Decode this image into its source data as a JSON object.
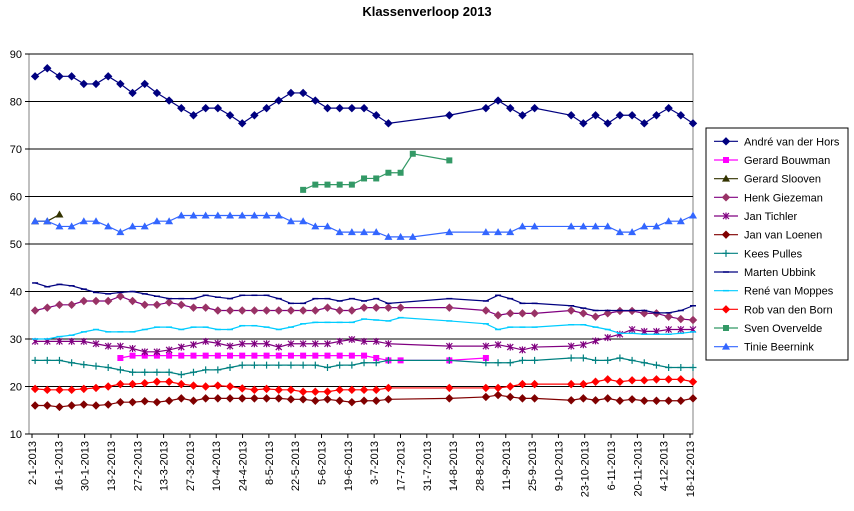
{
  "chart_data": {
    "type": "line",
    "title": "Klassenverloop 2013",
    "xlabel": "",
    "ylabel": "",
    "ylim": [
      10,
      90
    ],
    "yticks": [
      10,
      20,
      30,
      40,
      50,
      60,
      70,
      80,
      90
    ],
    "grid": "horizontal",
    "legend_position": "right",
    "x_tick_labels": [
      "2-1-2013",
      "16-1-2013",
      "30-1-2013",
      "13-2-2013",
      "27-2-2013",
      "13-3-2013",
      "27-3-2013",
      "10-4-2013",
      "24-4-2013",
      "8-5-2013",
      "22-5-2013",
      "5-6-2013",
      "19-6-2013",
      "3-7-2013",
      "17-7-2013",
      "31-7-2013",
      "14-8-2013",
      "28-8-2013",
      "11-9-2013",
      "25-9-2013",
      "9-10-2013",
      "23-10-2013",
      "6-11-2013",
      "20-11-2013",
      "4-12-2013",
      "18-12-2013"
    ],
    "series": [
      {
        "name": "André van der Hors",
        "color": "#000080",
        "marker": "diamond",
        "marker_color": "#000080",
        "values": [
          85.3,
          87,
          85.3,
          85.3,
          83.7,
          83.7,
          85.3,
          83.7,
          81.8,
          83.7,
          81.8,
          80.2,
          78.6,
          77.1,
          78.6,
          78.6,
          77.1,
          75.4,
          77.1,
          78.6,
          80.2,
          81.8,
          81.8,
          80.2,
          78.6,
          78.6,
          78.6,
          78.6,
          77.1,
          75.4,
          null,
          null,
          null,
          null,
          77.1,
          null,
          null,
          78.6,
          80.2,
          78.6,
          77.1,
          78.6,
          null,
          null,
          77.1,
          75.4,
          77.1,
          75.4,
          77.1,
          77.1,
          75.4,
          77.1,
          78.6,
          77.1,
          75.4
        ]
      },
      {
        "name": "Gerard Bouwman",
        "color": "#FF00FF",
        "marker": "square",
        "marker_color": "#FF00FF",
        "values": [
          null,
          null,
          null,
          null,
          null,
          null,
          null,
          26,
          26.5,
          26.5,
          26.5,
          26.5,
          26.5,
          26.5,
          26.5,
          26.5,
          26.5,
          26.5,
          26.5,
          26.5,
          26.5,
          26.5,
          26.5,
          26.5,
          26.5,
          26.5,
          26.5,
          26.5,
          26,
          25.5,
          25.5,
          null,
          null,
          null,
          25.5,
          null,
          null,
          26,
          null,
          null,
          null,
          null,
          null,
          null,
          null,
          null,
          null,
          null,
          null,
          null,
          null,
          null,
          null,
          null,
          null
        ]
      },
      {
        "name": "Gerard Slooven",
        "color": "#333300",
        "marker": "triangle",
        "marker_color": "#333300",
        "values": [
          54.8,
          54.8,
          56.2,
          null,
          null,
          null,
          null,
          null,
          null,
          null,
          null,
          null,
          null,
          null,
          null,
          null,
          null,
          null,
          null,
          null,
          null,
          null,
          null,
          null,
          null,
          null,
          null,
          null,
          null,
          null,
          null,
          null,
          null,
          null,
          null,
          null,
          null,
          null,
          null,
          null,
          null,
          null,
          null,
          null,
          null,
          null,
          null,
          null,
          null,
          null,
          null,
          null,
          null,
          null,
          null
        ]
      },
      {
        "name": "Henk Giezeman",
        "color": "#800080",
        "marker": "diamond",
        "marker_color": "#993366",
        "values": [
          36,
          36.6,
          37.2,
          37.2,
          38,
          38,
          38,
          39,
          38,
          37.2,
          37.2,
          37.7,
          37.2,
          36.6,
          36.6,
          36,
          36,
          36,
          36,
          36,
          36,
          36,
          36,
          36,
          36.6,
          36,
          36,
          36.6,
          36.6,
          36.6,
          36.6,
          null,
          null,
          null,
          36.6,
          null,
          null,
          36,
          35,
          35.4,
          35.4,
          35.4,
          null,
          null,
          36,
          35.4,
          34.7,
          35.4,
          35.9,
          35.9,
          35.4,
          35.4,
          34.7,
          34.2,
          34
        ]
      },
      {
        "name": "Jan Tichler",
        "color": "#800080",
        "marker": "asterisk",
        "marker_color": "#800080",
        "values": [
          29.5,
          29.5,
          29.5,
          29.5,
          29.5,
          29,
          28.5,
          28.5,
          28,
          27.3,
          27.3,
          27.7,
          28.3,
          28.8,
          29.5,
          29.1,
          28.5,
          29,
          29,
          29,
          28.3,
          29,
          29,
          29,
          29,
          29.5,
          29.9,
          29.5,
          29.5,
          29,
          null,
          null,
          null,
          null,
          28.5,
          null,
          null,
          28.5,
          28.8,
          28.3,
          27.7,
          28.3,
          null,
          null,
          28.5,
          28.8,
          29.6,
          30.3,
          31,
          32,
          31.6,
          31.6,
          32,
          32,
          32
        ]
      },
      {
        "name": "Jan van Loenen",
        "color": "#800000",
        "marker": "diamond",
        "marker_color": "#800000",
        "values": [
          16,
          16,
          15.7,
          16,
          16.2,
          16,
          16.2,
          16.7,
          16.7,
          16.9,
          16.7,
          17,
          17.5,
          17,
          17.5,
          17.5,
          17.5,
          17.5,
          17.5,
          17.5,
          17.5,
          17.3,
          17.3,
          17,
          17.3,
          17,
          16.7,
          17,
          17,
          17.3,
          null,
          null,
          null,
          null,
          17.5,
          null,
          null,
          17.8,
          18.2,
          17.8,
          17.5,
          17.5,
          null,
          null,
          17.1,
          17.5,
          17.1,
          17.5,
          17,
          17.3,
          17,
          17,
          17,
          17,
          17.5
        ]
      },
      {
        "name": "Kees Pulles",
        "color": "#008080",
        "marker": "plus",
        "marker_color": "#008080",
        "values": [
          25.5,
          25.5,
          25.5,
          25,
          24.6,
          24.3,
          24,
          23.5,
          23,
          23,
          23,
          23,
          22.5,
          23,
          23.5,
          23.5,
          24,
          24.5,
          24.5,
          24.5,
          24.5,
          24.5,
          24.5,
          24.5,
          24,
          24.5,
          24.5,
          25,
          25,
          25.5,
          null,
          null,
          null,
          null,
          25.5,
          null,
          null,
          25,
          25,
          25,
          25.5,
          25.5,
          null,
          null,
          26,
          26,
          25.5,
          25.5,
          26,
          25.5,
          25,
          24.5,
          24,
          24,
          24
        ]
      },
      {
        "name": "Marten Ubbink",
        "color": "#000080",
        "marker": "dash",
        "marker_color": "#000080",
        "values": [
          41.8,
          41,
          41.5,
          41.2,
          40.5,
          39.8,
          39.5,
          39.8,
          40,
          39.5,
          39,
          38.5,
          38.5,
          38.5,
          39.2,
          38.8,
          38.5,
          39.2,
          39.2,
          39.2,
          38.5,
          37.5,
          37.5,
          38.5,
          38.5,
          38,
          38.5,
          38,
          38.5,
          37.5,
          null,
          null,
          null,
          null,
          38.5,
          null,
          null,
          38,
          39.2,
          38.5,
          37.5,
          37.5,
          null,
          null,
          37,
          36.5,
          36,
          36,
          36,
          36,
          36,
          35.5,
          35.5,
          36,
          37
        ]
      },
      {
        "name": "René van Moppes",
        "color": "#00CCFF",
        "marker": "dash",
        "marker_color": "#00CCFF",
        "values": [
          30,
          30,
          30.5,
          30.8,
          31.5,
          32,
          31.5,
          31.5,
          31.5,
          32,
          32.5,
          32.5,
          32,
          32.5,
          32.5,
          32,
          32,
          32.8,
          32.8,
          32.5,
          32,
          32.5,
          33.2,
          33.5,
          33.5,
          33.5,
          33.5,
          34.2,
          34,
          33.8,
          34.5,
          null,
          null,
          null,
          33.8,
          null,
          null,
          33.2,
          32,
          32.5,
          32.5,
          32.5,
          null,
          null,
          33,
          33,
          32.5,
          32,
          31.2,
          31.2,
          31,
          31,
          31,
          31.2,
          31.5
        ]
      },
      {
        "name": "Rob van den Born",
        "color": "#FF0000",
        "marker": "diamond",
        "marker_color": "#FF0000",
        "values": [
          19.5,
          19.3,
          19.3,
          19.3,
          19.5,
          19.7,
          20,
          20.5,
          20.5,
          20.7,
          21,
          21,
          20.5,
          20.2,
          20,
          20.2,
          20,
          19.6,
          19.3,
          19.5,
          19.3,
          19.3,
          18.9,
          18.9,
          18.9,
          19.3,
          19.3,
          19.3,
          19.3,
          19.7,
          null,
          null,
          null,
          null,
          19.7,
          null,
          null,
          19.7,
          19.7,
          20,
          20.5,
          20.5,
          null,
          null,
          20.5,
          20.5,
          21,
          21.5,
          21,
          21.3,
          21.3,
          21.5,
          21.5,
          21.5,
          21
        ]
      },
      {
        "name": "Sven Overvelde",
        "color": "#339966",
        "marker": "square",
        "marker_color": "#339966",
        "values": [
          null,
          null,
          null,
          null,
          null,
          null,
          null,
          null,
          null,
          null,
          null,
          null,
          null,
          null,
          null,
          null,
          null,
          null,
          null,
          null,
          null,
          null,
          61.4,
          62.5,
          62.5,
          62.5,
          62.5,
          63.8,
          63.8,
          65,
          65,
          69,
          null,
          null,
          67.6,
          null,
          null,
          null,
          null,
          null,
          null,
          null,
          null,
          null,
          null,
          null,
          null,
          null,
          null,
          null,
          null,
          null,
          null,
          null,
          null
        ]
      },
      {
        "name": "Tinie Beernink",
        "color": "#3366FF",
        "marker": "triangle",
        "marker_color": "#3366FF",
        "values": [
          54.8,
          54.8,
          53.7,
          53.7,
          54.8,
          54.8,
          53.7,
          52.5,
          53.7,
          53.7,
          54.8,
          54.8,
          56,
          56,
          56,
          56,
          56,
          56,
          56,
          56,
          56,
          54.8,
          54.8,
          53.7,
          53.7,
          52.5,
          52.5,
          52.5,
          52.5,
          51.5,
          51.5,
          51.5,
          null,
          null,
          52.5,
          null,
          null,
          52.5,
          52.5,
          52.5,
          53.7,
          53.7,
          null,
          null,
          53.7,
          53.7,
          53.7,
          53.7,
          52.5,
          52.5,
          53.7,
          53.7,
          54.8,
          54.8,
          56
        ]
      }
    ]
  }
}
